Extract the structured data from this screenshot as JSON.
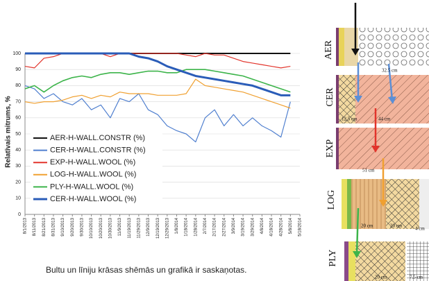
{
  "chart_data": {
    "type": "line",
    "ylabel": "Relatīvais mitrums, %",
    "categories": [
      "8/1/2013",
      "8/11/2013",
      "8/21/2013",
      "8/31/2013",
      "9/10/2013",
      "9/20/2013",
      "9/30/2013",
      "10/10/2013",
      "10/20/2013",
      "10/30/2013",
      "11/9/2013",
      "11/19/2013",
      "11/29/2013",
      "12/9/2013",
      "12/19/2013",
      "12/29/2013",
      "1/8/2014",
      "1/18/2014",
      "1/28/2014",
      "2/7/2014",
      "2/17/2014",
      "2/27/2014",
      "3/9/2014",
      "3/19/2014",
      "3/29/2014",
      "4/8/2014",
      "4/18/2014",
      "4/28/2014",
      "5/8/2014",
      "5/18/2014"
    ],
    "series": [
      {
        "name": "AER-H-WALL.CONSTR (%)",
        "color": "#111111",
        "linewidth": 2,
        "values": [
          100,
          100,
          100,
          100,
          100,
          100,
          100,
          100,
          100,
          100,
          100,
          100,
          100,
          100,
          100,
          100,
          100,
          100,
          100,
          100,
          100,
          100,
          100,
          100,
          100,
          100,
          100,
          100,
          100,
          null
        ]
      },
      {
        "name": "CER-H-WALL.CONSTR (%)",
        "color": "#4f7fcf",
        "linewidth": 1.2,
        "values": [
          80,
          78,
          72,
          75,
          70,
          68,
          72,
          65,
          68,
          60,
          72,
          70,
          75,
          65,
          62,
          55,
          52,
          50,
          45,
          60,
          65,
          55,
          62,
          55,
          60,
          55,
          52,
          48,
          70,
          null
        ]
      },
      {
        "name": "EXP-H-WALL.WOOL (%)",
        "color": "#e2342b",
        "linewidth": 1.2,
        "values": [
          92,
          91,
          97,
          98,
          100,
          100,
          100,
          100,
          100,
          98,
          100,
          100,
          100,
          100,
          100,
          100,
          100,
          99,
          98,
          100,
          99,
          99,
          97,
          95,
          94,
          93,
          92,
          91,
          92,
          null
        ]
      },
      {
        "name": "LOG-H-WALL.WOOL (%)",
        "color": "#f0a030",
        "linewidth": 1.2,
        "values": [
          70,
          69,
          70,
          70,
          71,
          73,
          74,
          72,
          74,
          73,
          76,
          75,
          75,
          75,
          74,
          74,
          74,
          75,
          84,
          80,
          79,
          78,
          77,
          76,
          74,
          72,
          70,
          68,
          66,
          null
        ]
      },
      {
        "name": "PLY-H-WALL.WOOL (%)",
        "color": "#3cb44a",
        "linewidth": 1.6,
        "values": [
          78,
          80,
          76,
          80,
          83,
          85,
          86,
          85,
          87,
          88,
          88,
          87,
          88,
          89,
          89,
          88,
          88,
          90,
          90,
          90,
          89,
          88,
          87,
          86,
          84,
          82,
          80,
          78,
          76,
          null
        ]
      },
      {
        "name": "CER-H-WALL.WOOL (%)",
        "color": "#2a5cb8",
        "linewidth": 3,
        "values": [
          100,
          100,
          100,
          100,
          100,
          100,
          100,
          100,
          100,
          100,
          100,
          100,
          98,
          97,
          95,
          92,
          90,
          88,
          86,
          85,
          84,
          83,
          82,
          81,
          80,
          78,
          76,
          74,
          74,
          null
        ]
      }
    ],
    "ylim": [
      0,
      100
    ],
    "yticks": [
      0,
      10,
      20,
      30,
      40,
      50,
      60,
      70,
      80,
      90,
      100
    ],
    "grid": true
  },
  "caption": "Bultu un līniju krāsas shēmās un grafikā ir saskaņotas.",
  "diagram": {
    "walls": [
      {
        "label": "AER",
        "dims": [
          "32.5 cm"
        ]
      },
      {
        "label": "CER",
        "dims": [
          "12.5 cm",
          "44 cm"
        ]
      },
      {
        "label": "EXP",
        "dims": [
          "51 cm"
        ]
      },
      {
        "label": "LOG",
        "dims": [
          "20 cm",
          "20 cm",
          "4 cm"
        ]
      },
      {
        "label": "PLY",
        "dims": [
          "20 cm",
          "7.5 cm"
        ]
      }
    ]
  }
}
